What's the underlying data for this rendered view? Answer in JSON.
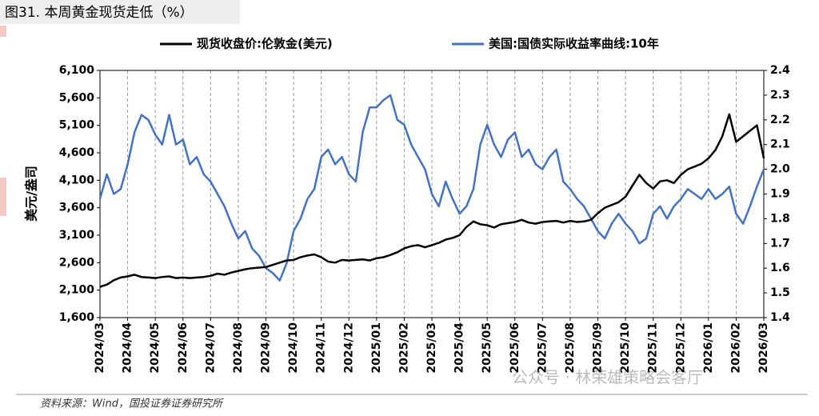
{
  "chart_data": {
    "type": "line",
    "title": "图31. 本周黄金现货走低（%）",
    "y_label": "美元/盎司",
    "source": "资料来源：Wind，国投证券证券研究所",
    "watermark": "公众号 · 林荣雄策略会客厅",
    "grid": true,
    "legend": "top",
    "categories": [
      "2024/03",
      null,
      null,
      null,
      "2024/04",
      null,
      null,
      null,
      "2024/05",
      null,
      null,
      null,
      "2024/06",
      null,
      null,
      null,
      "2024/07",
      null,
      null,
      null,
      "2024/08",
      null,
      null,
      null,
      "2024/09",
      null,
      null,
      null,
      "2024/10",
      null,
      null,
      null,
      "2024/11",
      null,
      null,
      null,
      "2024/12",
      null,
      null,
      null,
      "2025/01",
      null,
      null,
      null,
      "2025/02",
      null,
      null,
      null,
      "2025/03",
      null,
      null,
      null,
      "2025/04",
      null,
      null,
      null,
      "2025/05",
      null,
      null,
      null,
      "2025/06",
      null,
      null,
      null,
      "2025/07",
      null,
      null,
      null,
      "2025/08",
      null,
      null,
      null,
      "2025/09",
      null,
      null,
      null,
      "2025/10",
      null,
      null,
      null,
      "2025/11",
      null,
      null,
      null,
      "2025/12",
      null,
      null,
      null,
      "2026/01",
      null,
      null,
      null,
      "2026/02",
      null,
      null,
      null,
      "2026/03"
    ],
    "ylim": [
      1600,
      6100
    ],
    "yticks": [
      {
        "value": 1600,
        "label": "1,600"
      },
      {
        "value": 2100,
        "label": "2,100"
      },
      {
        "value": 2600,
        "label": "2,600"
      },
      {
        "value": 3100,
        "label": "3,100"
      },
      {
        "value": 3600,
        "label": "3,600"
      },
      {
        "value": 4100,
        "label": "4,100"
      },
      {
        "value": 4600,
        "label": "4,600"
      },
      {
        "value": 5100,
        "label": "5,100"
      },
      {
        "value": 5600,
        "label": "5,600"
      },
      {
        "value": 6100,
        "label": "6,100"
      }
    ],
    "y2lim": [
      1.4,
      2.4
    ],
    "y2ticks": [
      1.4,
      1.5,
      1.6,
      1.7,
      1.8,
      1.9,
      {
        "value": 2,
        "label": "2.0"
      },
      2.1,
      2.2,
      2.3,
      2.4
    ],
    "series": [
      {
        "name": "现货收盘价:伦敦金(美元)",
        "color": "#000000",
        "values": [
          2160,
          2200,
          2280,
          2330,
          2350,
          2380,
          2340,
          2330,
          2320,
          2340,
          2350,
          2320,
          2330,
          2320,
          2330,
          2340,
          2360,
          2400,
          2380,
          2420,
          2450,
          2480,
          2500,
          2510,
          2520,
          2560,
          2600,
          2640,
          2650,
          2700,
          2730,
          2750,
          2700,
          2620,
          2600,
          2650,
          2640,
          2650,
          2660,
          2640,
          2680,
          2700,
          2740,
          2790,
          2860,
          2900,
          2920,
          2880,
          2920,
          2960,
          3020,
          3050,
          3100,
          3250,
          3350,
          3300,
          3280,
          3240,
          3300,
          3320,
          3340,
          3380,
          3330,
          3310,
          3340,
          3350,
          3360,
          3330,
          3360,
          3340,
          3350,
          3380,
          3500,
          3600,
          3650,
          3700,
          3800,
          4000,
          4200,
          4050,
          3950,
          4080,
          4100,
          4050,
          4200,
          4300,
          4350,
          4400,
          4500,
          4650,
          4900,
          5300,
          4800,
          4900,
          5000,
          5100,
          4500
        ]
      },
      {
        "name": "美国:国债实际收益率曲线:10年",
        "color": "#4472c4",
        "axis": "y2",
        "values": [
          1.88,
          1.98,
          1.9,
          1.92,
          2.02,
          2.15,
          2.22,
          2.2,
          2.14,
          2.1,
          2.22,
          2.1,
          2.12,
          2.02,
          2.05,
          1.98,
          1.95,
          1.9,
          1.85,
          1.78,
          1.72,
          1.75,
          1.68,
          1.65,
          1.6,
          1.58,
          1.55,
          1.62,
          1.75,
          1.8,
          1.88,
          1.92,
          2.05,
          2.08,
          2.02,
          2.05,
          1.98,
          1.95,
          2.15,
          2.25,
          2.25,
          2.28,
          2.3,
          2.2,
          2.18,
          2.1,
          2.05,
          2.0,
          1.9,
          1.85,
          1.95,
          1.88,
          1.82,
          1.85,
          1.92,
          2.1,
          2.18,
          2.1,
          2.05,
          2.12,
          2.15,
          2.05,
          2.08,
          2.02,
          2.0,
          2.05,
          2.08,
          1.95,
          1.92,
          1.88,
          1.85,
          1.8,
          1.75,
          1.72,
          1.78,
          1.82,
          1.78,
          1.75,
          1.7,
          1.72,
          1.82,
          1.85,
          1.8,
          1.85,
          1.88,
          1.92,
          1.9,
          1.88,
          1.92,
          1.88,
          1.9,
          1.93,
          1.82,
          1.78,
          1.85,
          1.93,
          2.0
        ]
      }
    ]
  }
}
